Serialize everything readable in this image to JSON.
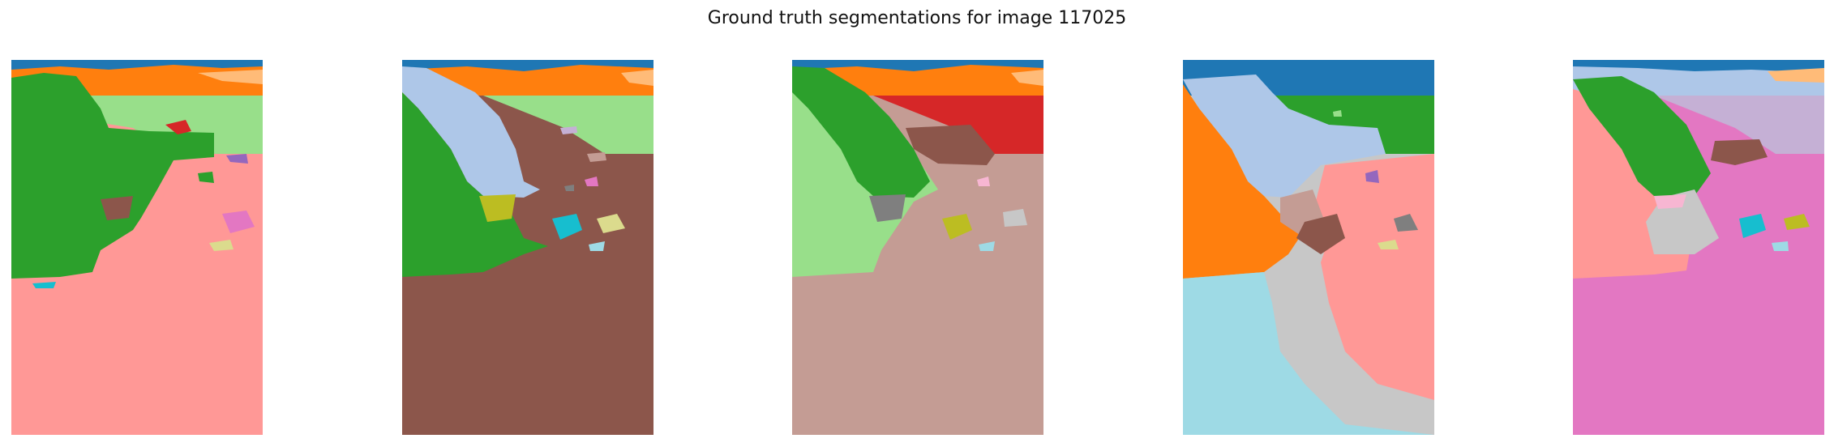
{
  "figure": {
    "title": "Ground truth segmentations for image 117025"
  },
  "palette": {
    "blue": "#1f77b4",
    "light_blue": "#aec7e8",
    "orange": "#ff7f0e",
    "light_orange": "#ffbb78",
    "green": "#2ca02c",
    "light_green": "#98df8a",
    "red": "#d62728",
    "pink": "#ff9896",
    "purple": "#9467bd",
    "lavender": "#c5b0d5",
    "brown": "#8c564b",
    "rosy_brown": "#c49c94",
    "magenta": "#e377c2",
    "light_pink": "#f7b6d2",
    "gray": "#7f7f7f",
    "light_gray": "#c7c7c7",
    "olive": "#bcbd22",
    "khaki": "#dbdb8d",
    "cyan": "#17becf",
    "light_cyan": "#9edae5"
  },
  "panels": [
    {
      "id": 1,
      "segments": 14
    },
    {
      "id": 2,
      "segments": 15
    },
    {
      "id": 3,
      "segments": 15
    },
    {
      "id": 4,
      "segments": 13
    },
    {
      "id": 5,
      "segments": 14
    }
  ]
}
